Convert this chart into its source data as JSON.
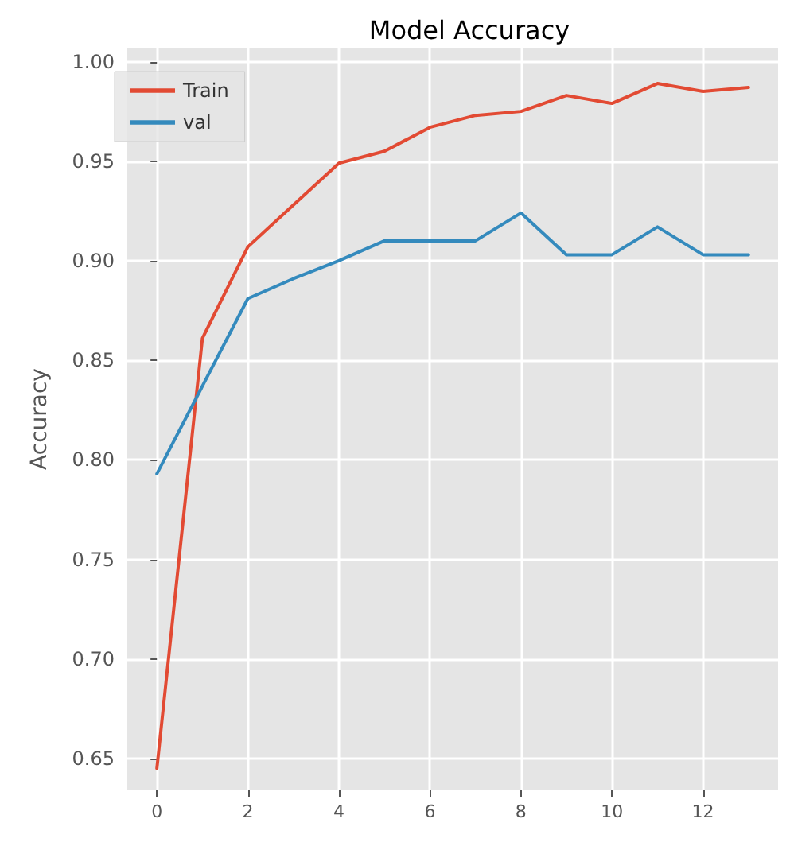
{
  "chart_data": {
    "type": "line",
    "title": "Model Accuracy",
    "ylabel": "Accuracy",
    "x": [
      0,
      1,
      2,
      3,
      4,
      5,
      6,
      7,
      8,
      9,
      10,
      11,
      12,
      13
    ],
    "series": [
      {
        "name": "Train",
        "color": "#e24a33",
        "values": [
          0.645,
          0.861,
          0.907,
          0.928,
          0.949,
          0.955,
          0.967,
          0.973,
          0.975,
          0.983,
          0.979,
          0.989,
          0.985,
          0.987
        ]
      },
      {
        "name": "val",
        "color": "#348abd",
        "values": [
          0.793,
          0.837,
          0.881,
          0.891,
          0.9,
          0.91,
          0.91,
          0.91,
          0.924,
          0.903,
          0.903,
          0.917,
          0.903,
          0.903
        ]
      }
    ],
    "xlim": [
      -0.65,
      13.65
    ],
    "xticks": [
      0,
      2,
      4,
      6,
      8,
      10,
      12
    ],
    "ylim": [
      0.634,
      1.007
    ],
    "yticks": [
      0.65,
      {
        "value": 0.7,
        "label": "0.70"
      },
      0.75,
      {
        "value": 0.8,
        "label": "0.80"
      },
      0.85,
      {
        "value": 0.9,
        "label": "0.90"
      },
      0.95,
      {
        "value": 1,
        "label": "1.00"
      }
    ],
    "grid": true,
    "legend": "top left",
    "marker": "none",
    "line_style": "solid"
  }
}
